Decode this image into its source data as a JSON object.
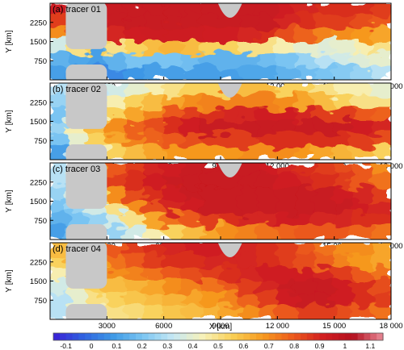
{
  "chart_data": {
    "type": "heatmap",
    "colormap": [
      "#3a1fd6",
      "#2f63e0",
      "#3f9ae6",
      "#7cc6f2",
      "#c6e8f4",
      "#f7f1b8",
      "#f9cf55",
      "#f6991f",
      "#ec5a1c",
      "#d11e20",
      "#b3101f",
      "#e98b98"
    ],
    "color_range": [
      -0.15,
      1.15
    ],
    "colorbar_ticks": [
      "-0.1",
      "0",
      "0.1",
      "0.2",
      "0.3",
      "0.4",
      "0.5",
      "0.6",
      "0.7",
      "0.8",
      "0.9",
      "1",
      "1.1"
    ],
    "colorbar_values": [
      -0.1,
      0,
      0.1,
      0.2,
      0.3,
      0.4,
      0.5,
      0.6,
      0.7,
      0.8,
      0.9,
      1.0,
      1.1
    ],
    "xlabel": "X [km]",
    "ylabel": "Y [km]",
    "xlim": [
      0,
      18000
    ],
    "ylim": [
      0,
      3000
    ],
    "x_ticks": [
      "3000",
      "6000",
      "9000",
      "12 000",
      "15 000",
      "18 000"
    ],
    "x_tick_values": [
      3000,
      6000,
      9000,
      12000,
      15000,
      18000
    ],
    "y_ticks": [
      "2250",
      "1500",
      "750"
    ],
    "y_tick_values": [
      2250,
      1500,
      750
    ],
    "land_color": "#c8c8c8",
    "panels": [
      {
        "label": "(a) tracer 01",
        "field": [
          [
            0.92,
            0.95,
            0.95,
            0.95,
            0.95,
            0.95,
            0.95,
            0.95,
            0.95,
            0.95,
            0.95,
            0.95,
            0.92,
            0.9,
            0.88,
            0.88,
            0.88,
            0.85
          ],
          [
            0.85,
            0.9,
            0.92,
            0.95,
            0.95,
            0.95,
            0.95,
            0.95,
            0.95,
            0.95,
            0.95,
            0.95,
            0.9,
            0.88,
            0.85,
            0.85,
            0.82,
            0.8
          ],
          [
            0.7,
            0.78,
            0.85,
            0.9,
            0.92,
            0.93,
            0.93,
            0.93,
            0.92,
            0.92,
            0.9,
            0.88,
            0.82,
            0.78,
            0.72,
            0.7,
            0.68,
            0.65
          ],
          [
            0.35,
            0.5,
            0.55,
            0.5,
            0.55,
            0.6,
            0.62,
            0.6,
            0.55,
            0.55,
            0.5,
            0.5,
            0.45,
            0.4,
            0.38,
            0.4,
            0.45,
            0.5
          ],
          [
            0.15,
            0.12,
            0.1,
            0.15,
            0.2,
            0.2,
            0.2,
            0.18,
            0.15,
            0.15,
            0.15,
            0.18,
            0.2,
            0.25,
            0.3,
            0.35,
            0.38,
            0.4
          ],
          [
            0.1,
            0.08,
            0.05,
            0.05,
            0.08,
            0.1,
            0.1,
            0.1,
            0.1,
            0.1,
            0.12,
            0.12,
            0.15,
            0.18,
            0.2,
            0.22,
            0.25,
            0.3
          ]
        ]
      },
      {
        "label": "(b) tracer 02",
        "field": [
          [
            0.3,
            0.3,
            0.32,
            0.35,
            0.4,
            0.45,
            0.5,
            0.55,
            0.55,
            0.55,
            0.6,
            0.6,
            0.55,
            0.55,
            0.5,
            0.45,
            0.45,
            0.4
          ],
          [
            0.25,
            0.3,
            0.35,
            0.45,
            0.55,
            0.6,
            0.65,
            0.7,
            0.72,
            0.72,
            0.72,
            0.72,
            0.7,
            0.65,
            0.6,
            0.55,
            0.5,
            0.5
          ],
          [
            0.2,
            0.35,
            0.45,
            0.55,
            0.65,
            0.72,
            0.8,
            0.85,
            0.88,
            0.9,
            0.9,
            0.92,
            0.92,
            0.9,
            0.85,
            0.85,
            0.8,
            0.78
          ],
          [
            0.25,
            0.45,
            0.6,
            0.7,
            0.78,
            0.82,
            0.88,
            0.92,
            0.95,
            0.95,
            0.95,
            0.95,
            0.95,
            0.95,
            0.95,
            0.95,
            0.92,
            0.9
          ],
          [
            0.2,
            0.4,
            0.55,
            0.65,
            0.72,
            0.78,
            0.8,
            0.82,
            0.85,
            0.85,
            0.85,
            0.88,
            0.88,
            0.88,
            0.88,
            0.88,
            0.85,
            0.82
          ],
          [
            0.1,
            0.3,
            0.45,
            0.55,
            0.6,
            0.65,
            0.68,
            0.68,
            0.68,
            0.68,
            0.7,
            0.7,
            0.7,
            0.68,
            0.65,
            0.62,
            0.6,
            0.55
          ]
        ]
      },
      {
        "label": "(c) tracer 03",
        "field": [
          [
            0.3,
            0.35,
            0.7,
            0.8,
            0.85,
            0.9,
            0.92,
            0.95,
            0.95,
            0.95,
            0.95,
            0.92,
            0.9,
            0.88,
            0.85,
            0.82,
            0.8,
            0.7
          ],
          [
            0.3,
            0.4,
            0.75,
            0.85,
            0.88,
            0.92,
            0.95,
            0.95,
            0.95,
            0.95,
            0.95,
            0.95,
            0.92,
            0.9,
            0.88,
            0.85,
            0.8,
            0.75
          ],
          [
            0.25,
            0.35,
            0.55,
            0.7,
            0.82,
            0.88,
            0.92,
            0.95,
            0.95,
            0.95,
            0.95,
            0.95,
            0.95,
            0.95,
            0.95,
            0.92,
            0.9,
            0.85
          ],
          [
            0.2,
            0.25,
            0.35,
            0.5,
            0.7,
            0.82,
            0.9,
            0.92,
            0.95,
            0.95,
            0.95,
            0.95,
            0.95,
            0.95,
            0.95,
            0.95,
            0.92,
            0.9
          ],
          [
            0.15,
            0.2,
            0.25,
            0.35,
            0.5,
            0.65,
            0.75,
            0.8,
            0.85,
            0.88,
            0.9,
            0.9,
            0.92,
            0.92,
            0.9,
            0.9,
            0.88,
            0.88
          ],
          [
            0.1,
            0.15,
            0.2,
            0.25,
            0.35,
            0.45,
            0.55,
            0.6,
            0.65,
            0.7,
            0.72,
            0.75,
            0.78,
            0.8,
            0.8,
            0.8,
            0.78,
            0.75
          ]
        ]
      },
      {
        "label": "(d) tracer 04",
        "field": [
          [
            0.6,
            0.65,
            0.7,
            0.8,
            0.85,
            0.88,
            0.9,
            0.92,
            0.92,
            0.92,
            0.9,
            0.88,
            0.85,
            0.8,
            0.75,
            0.7,
            0.7,
            0.65
          ],
          [
            0.55,
            0.62,
            0.68,
            0.75,
            0.8,
            0.85,
            0.88,
            0.88,
            0.9,
            0.9,
            0.9,
            0.88,
            0.85,
            0.82,
            0.78,
            0.72,
            0.68,
            0.65
          ],
          [
            0.45,
            0.55,
            0.62,
            0.7,
            0.72,
            0.75,
            0.8,
            0.82,
            0.85,
            0.88,
            0.9,
            0.92,
            0.92,
            0.92,
            0.9,
            0.85,
            0.8,
            0.75
          ],
          [
            0.35,
            0.45,
            0.55,
            0.6,
            0.62,
            0.65,
            0.7,
            0.72,
            0.75,
            0.8,
            0.85,
            0.9,
            0.95,
            0.95,
            0.95,
            0.92,
            0.88,
            0.82
          ],
          [
            0.3,
            0.4,
            0.5,
            0.55,
            0.58,
            0.6,
            0.62,
            0.65,
            0.68,
            0.72,
            0.78,
            0.85,
            0.92,
            0.95,
            0.95,
            0.92,
            0.88,
            0.85
          ],
          [
            0.3,
            0.4,
            0.45,
            0.5,
            0.52,
            0.55,
            0.58,
            0.6,
            0.62,
            0.65,
            0.7,
            0.75,
            0.8,
            0.85,
            0.85,
            0.82,
            0.8,
            0.75
          ]
        ]
      }
    ]
  }
}
